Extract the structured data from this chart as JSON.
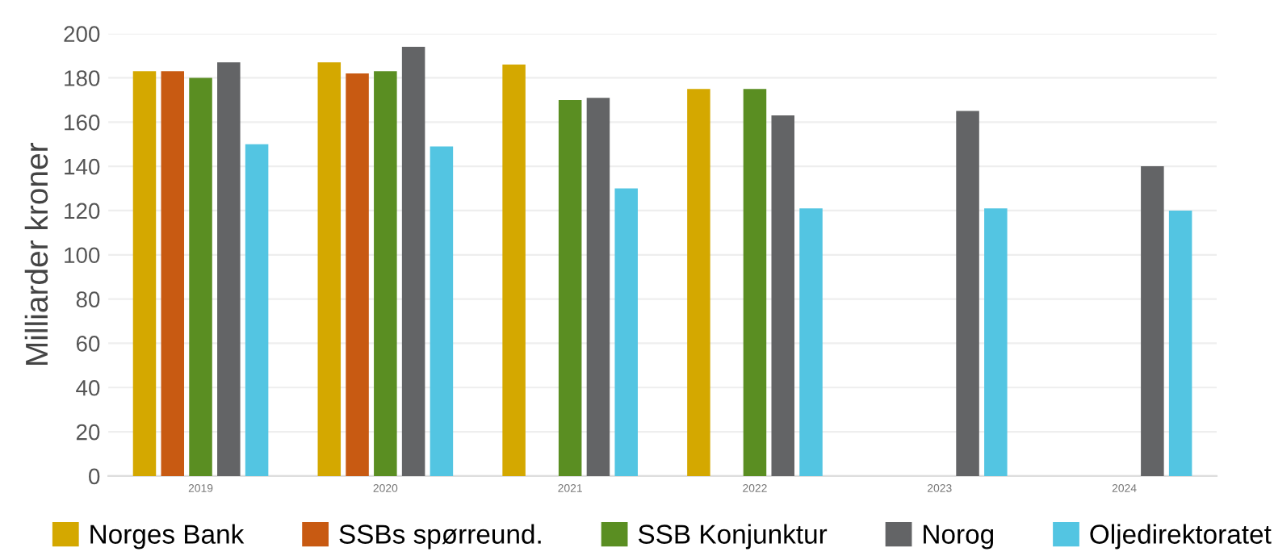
{
  "chart_data": {
    "type": "bar",
    "ylabel": "Milliarder kroner",
    "categories": [
      "2019",
      "2020",
      "2021",
      "2022",
      "2023",
      "2024"
    ],
    "series": [
      {
        "name": "Norges Bank",
        "color": "#d4a800",
        "values": [
          183,
          187,
          186,
          175,
          null,
          null
        ]
      },
      {
        "name": "SSBs spørreund.",
        "color": "#c85a12",
        "values": [
          183,
          182,
          null,
          null,
          null,
          null
        ]
      },
      {
        "name": "SSB Konjunktur",
        "color": "#5a8e22",
        "values": [
          180,
          183,
          170,
          175,
          null,
          null
        ]
      },
      {
        "name": "Norog",
        "color": "#636466",
        "values": [
          187,
          194,
          171,
          163,
          165,
          140
        ]
      },
      {
        "name": "Oljedirektoratet",
        "color": "#53c5e2",
        "values": [
          150,
          149,
          130,
          121,
          121,
          120
        ]
      }
    ],
    "ylim": [
      0,
      200
    ],
    "yticks": [
      0,
      20,
      40,
      60,
      80,
      100,
      120,
      140,
      160,
      180,
      200
    ],
    "grid": "y",
    "legend": "bottom"
  }
}
